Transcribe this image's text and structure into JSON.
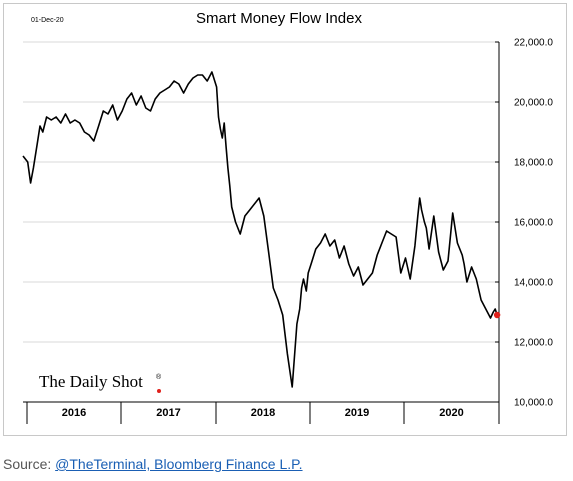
{
  "date_stamp": "01-Dec-20",
  "brand": {
    "name": "The Daily Shot",
    "mark": "®"
  },
  "source": {
    "prefix": "Source: ",
    "link_text": "@TheTerminal, Bloomberg Finance L.P."
  },
  "colors": {
    "line": "#000000",
    "endpoint": "#e0201b",
    "grid": "#d9d9d9",
    "source_link": "#1a5fb4"
  },
  "chart_data": {
    "type": "line",
    "title": "Smart Money Flow Index",
    "xlabel": "",
    "ylabel": "",
    "ylim": [
      10000,
      22000
    ],
    "xlim": [
      2015.95,
      2020.99
    ],
    "y_ticks": [
      10000,
      12000,
      14000,
      16000,
      18000,
      20000,
      22000
    ],
    "y_tick_labels": [
      "10,000.0",
      "12,000.0",
      "14,000.0",
      "16,000.0",
      "18,000.0",
      "20,000.0",
      "22,000.0"
    ],
    "x_categories": [
      "2016",
      "2017",
      "2018",
      "2019",
      "2020"
    ],
    "grid": "horizontal",
    "legend": "none",
    "series": [
      {
        "name": "",
        "x": [
          2015.95,
          2016.0,
          2016.03,
          2016.06,
          2016.1,
          2016.13,
          2016.16,
          2016.2,
          2016.25,
          2016.3,
          2016.35,
          2016.4,
          2016.45,
          2016.5,
          2016.55,
          2016.6,
          2016.65,
          2016.7,
          2016.75,
          2016.8,
          2016.85,
          2016.9,
          2016.95,
          2017.0,
          2017.05,
          2017.1,
          2017.15,
          2017.2,
          2017.25,
          2017.3,
          2017.35,
          2017.4,
          2017.45,
          2017.5,
          2017.55,
          2017.6,
          2017.65,
          2017.7,
          2017.75,
          2017.8,
          2017.85,
          2017.9,
          2017.95,
          2018.0,
          2018.02,
          2018.04,
          2018.06,
          2018.08,
          2018.1,
          2018.12,
          2018.14,
          2018.16,
          2018.2,
          2018.25,
          2018.3,
          2018.35,
          2018.4,
          2018.45,
          2018.5,
          2018.55,
          2018.6,
          2018.65,
          2018.7,
          2018.75,
          2018.8,
          2018.85,
          2018.88,
          2018.9,
          2018.92,
          2018.95,
          2018.97,
          2019.0,
          2019.05,
          2019.1,
          2019.15,
          2019.2,
          2019.25,
          2019.3,
          2019.35,
          2019.4,
          2019.45,
          2019.5,
          2019.55,
          2019.6,
          2019.65,
          2019.7,
          2019.75,
          2019.8,
          2019.85,
          2019.9,
          2019.95,
          2020.0,
          2020.05,
          2020.1,
          2020.13,
          2020.15,
          2020.17,
          2020.2,
          2020.22,
          2020.25,
          2020.3,
          2020.35,
          2020.4,
          2020.45,
          2020.5,
          2020.55,
          2020.6,
          2020.62,
          2020.65,
          2020.7,
          2020.75,
          2020.8,
          2020.85,
          2020.9,
          2020.93,
          2020.95,
          2020.97
        ],
        "values": [
          18200,
          18000,
          17300,
          17800,
          18600,
          19200,
          19000,
          19500,
          19400,
          19500,
          19300,
          19600,
          19300,
          19400,
          19300,
          19000,
          18900,
          18700,
          19200,
          19700,
          19600,
          19900,
          19400,
          19700,
          20100,
          20300,
          19900,
          20200,
          19800,
          19700,
          20100,
          20300,
          20400,
          20500,
          20700,
          20600,
          20300,
          20600,
          20800,
          20900,
          20900,
          20700,
          21000,
          20500,
          19500,
          19100,
          18800,
          19300,
          18500,
          17800,
          17200,
          16500,
          16000,
          15600,
          16200,
          16400,
          16600,
          16800,
          16200,
          15000,
          13800,
          13400,
          12900,
          11600,
          10500,
          12600,
          13100,
          13800,
          14100,
          13700,
          14300,
          14600,
          15100,
          15300,
          15600,
          15200,
          15400,
          14800,
          15200,
          14600,
          14200,
          14500,
          13900,
          14100,
          14300,
          14900,
          15300,
          15700,
          15600,
          15500,
          14300,
          14800,
          14100,
          15200,
          16200,
          16800,
          16400,
          16000,
          15800,
          15100,
          16200,
          15000,
          14400,
          14700,
          16300,
          15300,
          14900,
          14600,
          14000,
          14500,
          14100,
          13400,
          13100,
          12800,
          13000,
          13100,
          12900
        ]
      }
    ],
    "endpoint": {
      "x": 2020.97,
      "y": 12900
    }
  }
}
